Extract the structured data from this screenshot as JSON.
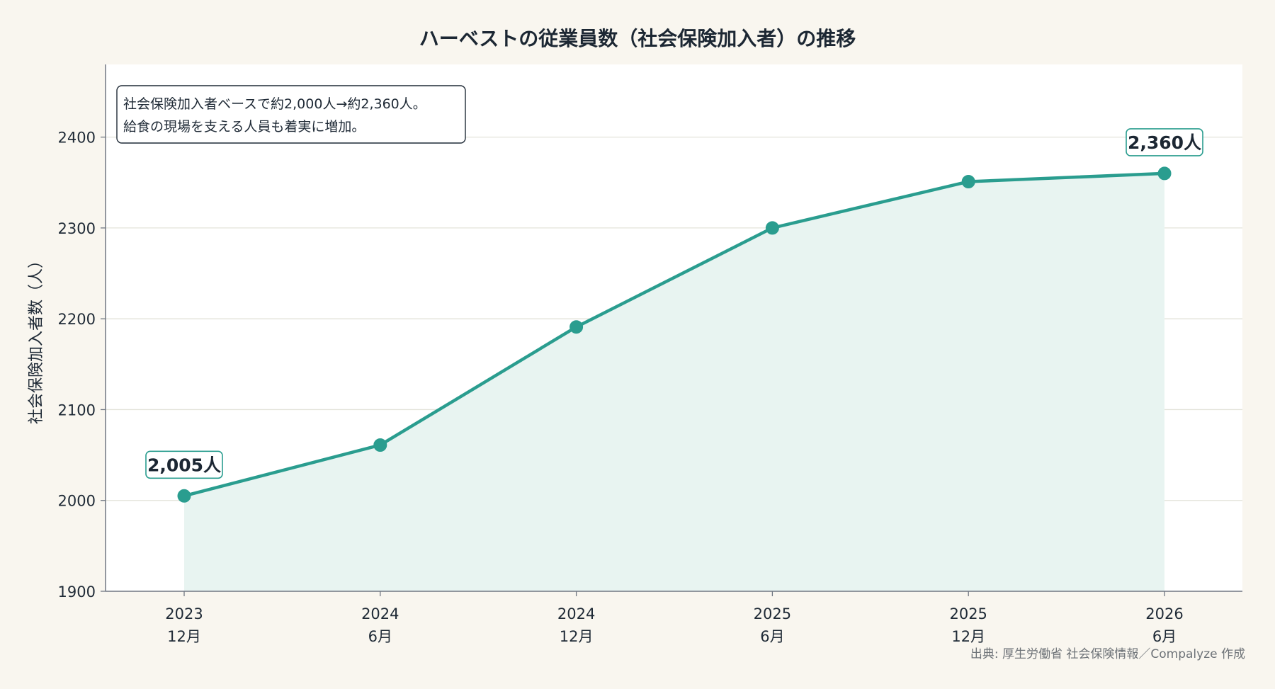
{
  "chart_data": {
    "type": "line",
    "title": "ハーベストの従業員数（社会保険加入者）の推移",
    "ylabel": "社会保険加入者数（人）",
    "xlabel": "",
    "categories": [
      [
        "2023",
        "12月"
      ],
      [
        "2024",
        "6月"
      ],
      [
        "2024",
        "12月"
      ],
      [
        "2025",
        "6月"
      ],
      [
        "2025",
        "12月"
      ],
      [
        "2026",
        "6月"
      ]
    ],
    "series": [
      {
        "values": [
          2005,
          2061,
          2191,
          2300,
          2351,
          2360
        ],
        "color": "#2a9d8f",
        "fill": "area"
      }
    ],
    "ylim": [
      1900,
      2480
    ],
    "yticks": [
      1900,
      2000,
      2100,
      2200,
      2300,
      2400
    ],
    "grid": "horizontal",
    "data_labels": [
      {
        "index": 0,
        "text": "2,005人"
      },
      {
        "index": 5,
        "text": "2,360人"
      }
    ],
    "annotation": {
      "lines": [
        "社会保険加入者ベースで約2,000人→約2,360人。",
        "給食の現場を支える人員も着実に増加。"
      ],
      "placement": "top-left"
    },
    "source": "出典: 厚生労働省 社会保険情報／Compalyze 作成"
  },
  "colors": {
    "background": "#f9f6ef",
    "plot_background": "#ffffff",
    "line": "#2a9d8f",
    "area_fill": "#e8f4f1",
    "grid": "#e3e3d9",
    "axis": "#707782",
    "text": "#1f2a36"
  }
}
